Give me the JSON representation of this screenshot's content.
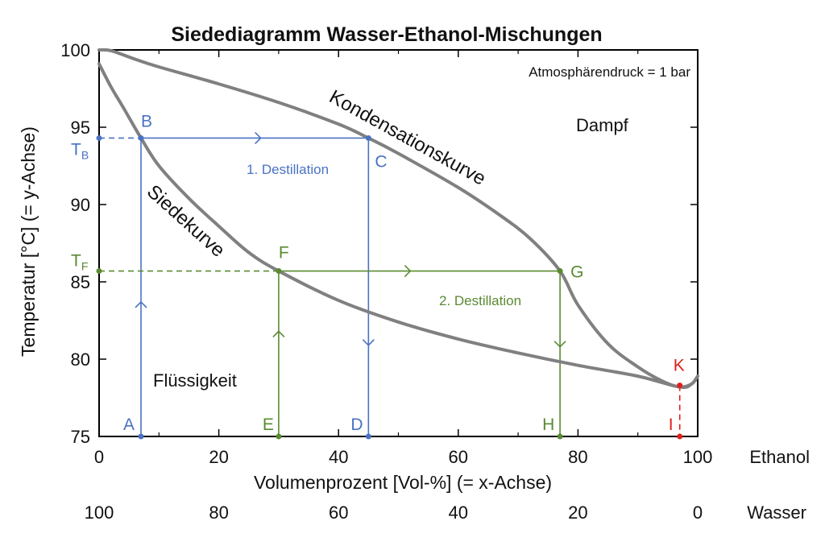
{
  "chart_data": {
    "type": "line",
    "title": "Siedediagramm Wasser-Ethanol-Mischungen",
    "xlabel": "Volumenprozent [Vol-%] (= x-Achse)",
    "ylabel": "Temperatur [°C] (= y-Achse)",
    "xlim": [
      0,
      100
    ],
    "ylim": [
      75,
      100
    ],
    "x_ticks": [
      "0",
      "20",
      "40",
      "60",
      "80",
      "100"
    ],
    "y_ticks": [
      "75",
      "80",
      "85",
      "90",
      "95",
      "100"
    ],
    "x_unit_label": "Ethanol",
    "secondary_x_ticks": [
      "100",
      "80",
      "60",
      "40",
      "20",
      "0"
    ],
    "secondary_x_unit_label": "Wasser",
    "annotation": "Atmosphärendruck = 1 bar",
    "regions": {
      "vapor": "Dampf",
      "liquid": "Flüssigkeit"
    },
    "series": [
      {
        "name": "Siedekurve",
        "color": "#808080",
        "points": [
          [
            0,
            99.1
          ],
          [
            2,
            97.6
          ],
          [
            4,
            96.3
          ],
          [
            7,
            94.3
          ],
          [
            10,
            92.5
          ],
          [
            15,
            90.4
          ],
          [
            20,
            88.6
          ],
          [
            25,
            86.9
          ],
          [
            30,
            85.7
          ],
          [
            40,
            83.8
          ],
          [
            50,
            82.4
          ],
          [
            60,
            81.3
          ],
          [
            70,
            80.4
          ],
          [
            80,
            79.6
          ],
          [
            90,
            78.9
          ],
          [
            97,
            78.2
          ],
          [
            99,
            78.4
          ],
          [
            100,
            78.9
          ]
        ]
      },
      {
        "name": "Kondensationskurve",
        "color": "#808080",
        "points": [
          [
            0,
            100
          ],
          [
            2,
            99.95
          ],
          [
            6,
            99.4
          ],
          [
            10,
            98.9
          ],
          [
            20,
            97.8
          ],
          [
            30,
            96.6
          ],
          [
            40,
            95.2
          ],
          [
            45,
            94.3
          ],
          [
            50,
            93.3
          ],
          [
            60,
            91.1
          ],
          [
            67,
            89.3
          ],
          [
            72,
            87.8
          ],
          [
            77,
            85.7
          ],
          [
            80,
            83.5
          ],
          [
            85,
            81.0
          ],
          [
            90,
            79.5
          ],
          [
            94,
            78.6
          ],
          [
            97,
            78.2
          ],
          [
            99,
            78.4
          ],
          [
            100,
            78.9
          ]
        ]
      }
    ],
    "points": [
      {
        "label": "A",
        "x": 7,
        "y": 75,
        "color": "#4a72c4"
      },
      {
        "label": "B",
        "x": 7,
        "y": 94.3,
        "color": "#4a72c4"
      },
      {
        "label": "C",
        "x": 45,
        "y": 94.3,
        "color": "#4a72c4"
      },
      {
        "label": "D",
        "x": 45,
        "y": 75,
        "color": "#4a72c4"
      },
      {
        "label": "E",
        "x": 30,
        "y": 75,
        "color": "#5a8a32"
      },
      {
        "label": "F",
        "x": 30,
        "y": 85.7,
        "color": "#5a8a32"
      },
      {
        "label": "G",
        "x": 77,
        "y": 85.7,
        "color": "#5a8a32"
      },
      {
        "label": "H",
        "x": 77,
        "y": 75,
        "color": "#5a8a32"
      },
      {
        "label": "K",
        "x": 97,
        "y": 78.3,
        "color": "#e0201b"
      },
      {
        "label": "I",
        "x": 97,
        "y": 75,
        "color": "#e0201b"
      }
    ],
    "temperature_marks": [
      {
        "main": "T",
        "sub": "B",
        "y": 94.3,
        "color": "#4a72c4"
      },
      {
        "main": "T",
        "sub": "F",
        "y": 85.7,
        "color": "#5a8a32"
      }
    ],
    "distillation_labels": [
      {
        "text": "1. Destillation",
        "color": "#4a72c4"
      },
      {
        "text": "2. Destillation",
        "color": "#5a8a32"
      }
    ]
  }
}
